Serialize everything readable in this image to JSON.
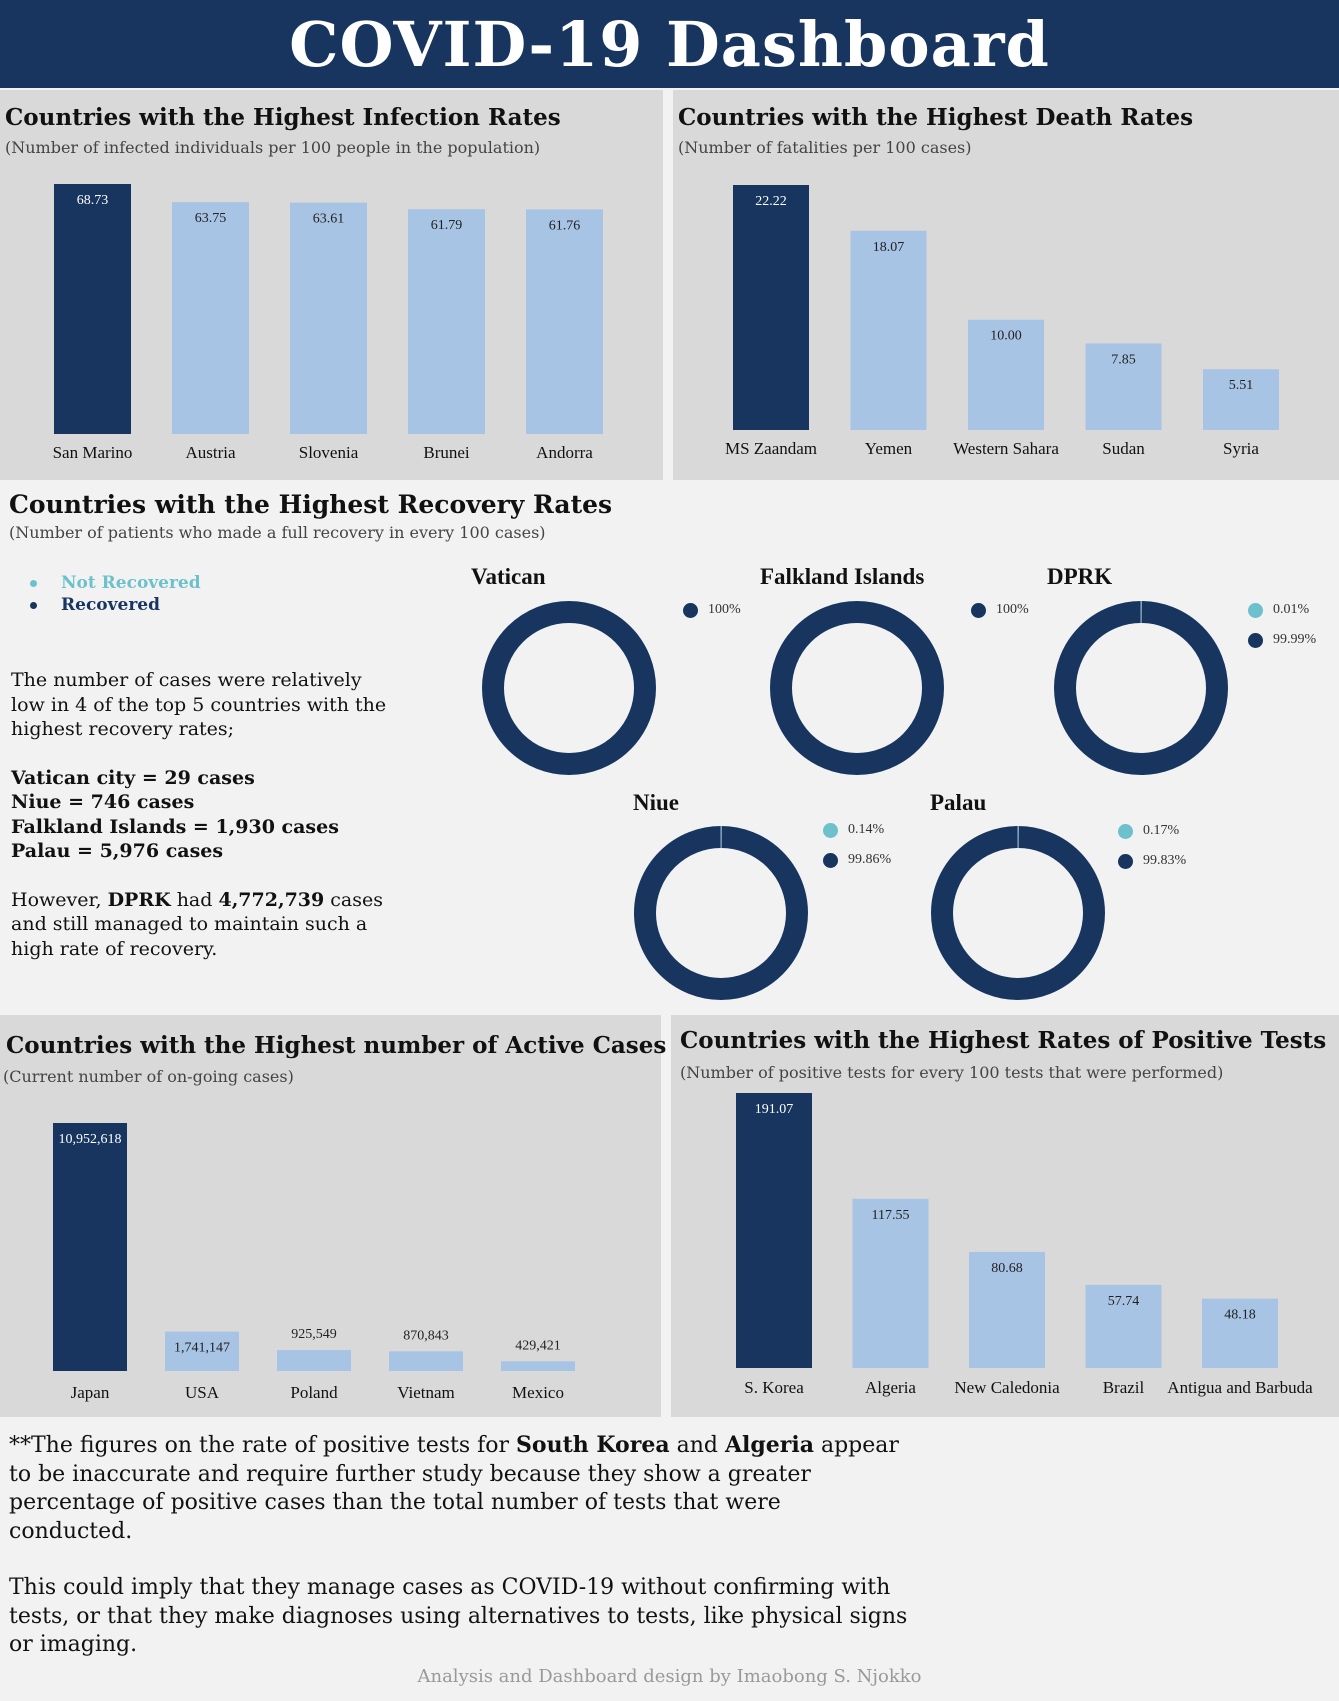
{
  "title": "COVID-19 Dashboard",
  "colors": {
    "dark": "#17355f",
    "light": "#a8c4e4",
    "teal": "#6cc1cc",
    "panel": "#d9d9d9"
  },
  "infection": {
    "title": "Countries with the Highest Infection Rates",
    "subtitle": "(Number of infected individuals per 100 people in the population)"
  },
  "death": {
    "title": "Countries with the Highest Death Rates",
    "subtitle": "(Number of fatalities per 100 cases)"
  },
  "active": {
    "title": "Countries with the Highest number of Active Cases",
    "subtitle": "(Current number of on-going cases)"
  },
  "positive": {
    "title": "Countries with the Highest Rates of Positive Tests",
    "subtitle": "(Number of positive tests for every 100 tests that were performed)"
  },
  "recovery": {
    "title": "Countries with the Highest Recovery Rates",
    "subtitle": "(Number of patients who made a full recovery in every 100 cases)",
    "legend": {
      "not_recovered": "Not Recovered",
      "recovered": "Recovered"
    },
    "note": {
      "intro": "The number of cases were relatively low in 4 of the top 5 countries with the highest recovery rates;",
      "lines": [
        "Vatican city = 29 cases",
        "Niue = 746 cases",
        "Falkland Islands = 1,930 cases",
        "Palau = 5,976 cases"
      ],
      "however_1": "However, ",
      "however_dprk": "DPRK",
      "however_2": " had ",
      "however_cases": "4,772,739",
      "however_3": " cases and still managed to maintain such a high rate of recovery."
    },
    "donuts": [
      {
        "name": "Vatican",
        "not_recovered": null,
        "recovered": "100%"
      },
      {
        "name": "Falkland Islands",
        "not_recovered": null,
        "recovered": "100%"
      },
      {
        "name": "DPRK",
        "not_recovered": "0.01%",
        "recovered": "99.99%"
      },
      {
        "name": "Niue",
        "not_recovered": "0.14%",
        "recovered": "99.86%"
      },
      {
        "name": "Palau",
        "not_recovered": "0.17%",
        "recovered": "99.83%"
      }
    ]
  },
  "footnote": {
    "p1_a": "**The figures on the rate of positive tests for ",
    "p1_b": "South Korea",
    "p1_c": " and ",
    "p1_d": "Algeria",
    "p1_e": " appear to be inaccurate and require further study because they show a greater percentage of positive cases than the total number of tests that were conducted.",
    "p2": "This could imply that they manage cases as COVID-19 without confirming with tests, or that they make diagnoses using alternatives to tests, like physical signs or imaging."
  },
  "credit": "Analysis and Dashboard design by Imaobong S. Njokko",
  "chart_data": [
    {
      "type": "bar",
      "title": "Countries with the Highest Infection Rates",
      "categories": [
        "San Marino",
        "Austria",
        "Slovenia",
        "Brunei",
        "Andorra"
      ],
      "values": [
        68.73,
        63.75,
        63.61,
        61.79,
        61.76
      ],
      "labels": [
        "68.73",
        "63.75",
        "63.61",
        "61.79",
        "61.76"
      ],
      "ylim": [
        0,
        68.73
      ],
      "highlight": 0
    },
    {
      "type": "bar",
      "title": "Countries with the Highest Death Rates",
      "categories": [
        "MS Zaandam",
        "Yemen",
        "Western Sahara",
        "Sudan",
        "Syria"
      ],
      "values": [
        22.22,
        18.07,
        10.0,
        7.85,
        5.51
      ],
      "labels": [
        "22.22",
        "18.07",
        "10.00",
        "7.85",
        "5.51"
      ],
      "ylim": [
        0,
        22.22
      ],
      "highlight": 0
    },
    {
      "type": "bar",
      "title": "Countries with the Highest number of Active Cases",
      "categories": [
        "Japan",
        "USA",
        "Poland",
        "Vietnam",
        "Mexico"
      ],
      "values": [
        10952618,
        1741147,
        925549,
        870843,
        429421
      ],
      "labels": [
        "10,952,618",
        "1,741,147",
        "925,549",
        "870,843",
        "429,421"
      ],
      "ylim": [
        0,
        10952618
      ],
      "highlight": 0
    },
    {
      "type": "bar",
      "title": "Countries with the Highest Rates of Positive Tests",
      "categories": [
        "S. Korea",
        "Algeria",
        "New Caledonia",
        "Brazil",
        "Antigua and Barbuda"
      ],
      "values": [
        191.07,
        117.55,
        80.68,
        57.74,
        48.18
      ],
      "labels": [
        "191.07",
        "117.55",
        "80.68",
        "57.74",
        "48.18"
      ],
      "ylim": [
        0,
        191.07
      ],
      "highlight": 0
    },
    {
      "type": "pie",
      "title": "Countries with the Highest Recovery Rates",
      "series": [
        {
          "name": "Vatican",
          "values": [
            0,
            100
          ]
        },
        {
          "name": "Falkland Islands",
          "values": [
            0,
            100
          ]
        },
        {
          "name": "DPRK",
          "values": [
            0.01,
            99.99
          ]
        },
        {
          "name": "Niue",
          "values": [
            0.14,
            99.86
          ]
        },
        {
          "name": "Palau",
          "values": [
            0.17,
            99.83
          ]
        }
      ],
      "categories": [
        "Not Recovered",
        "Recovered"
      ]
    }
  ]
}
